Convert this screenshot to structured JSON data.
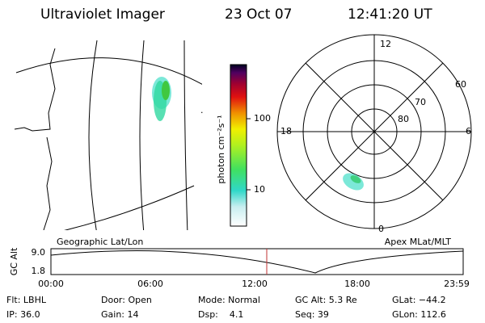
{
  "header": {
    "title": "Ultraviolet Imager",
    "date": "23 Oct 07",
    "time": "12:41:20 UT"
  },
  "colorbar": {
    "label": "photon cm⁻²s⁻¹",
    "ticks": [
      "100",
      "10"
    ]
  },
  "polar": {
    "mlt_labels": [
      "12",
      "6",
      "0",
      "18"
    ],
    "lat_labels": [
      "60",
      "70",
      "80"
    ]
  },
  "map": {
    "left_label": "Geographic Lat/Lon",
    "right_label": "Apex MLat/MLT"
  },
  "altitude": {
    "axis_label": "GC Alt",
    "y_ticks": [
      "9.0",
      "1.8"
    ],
    "x_ticks": [
      "00:00",
      "06:00",
      "12:00",
      "18:00",
      "23:59"
    ]
  },
  "footer": {
    "rows": [
      [
        "Flt: LBHL",
        "Door: Open",
        "Mode: Normal",
        "GC Alt: 5.3 Re",
        "GLat: −44.2"
      ],
      [
        "IP: 36.0",
        "Gain: 14",
        "Dsp:    4.1",
        "Seq: 39",
        "GLon: 112.6"
      ]
    ]
  }
}
